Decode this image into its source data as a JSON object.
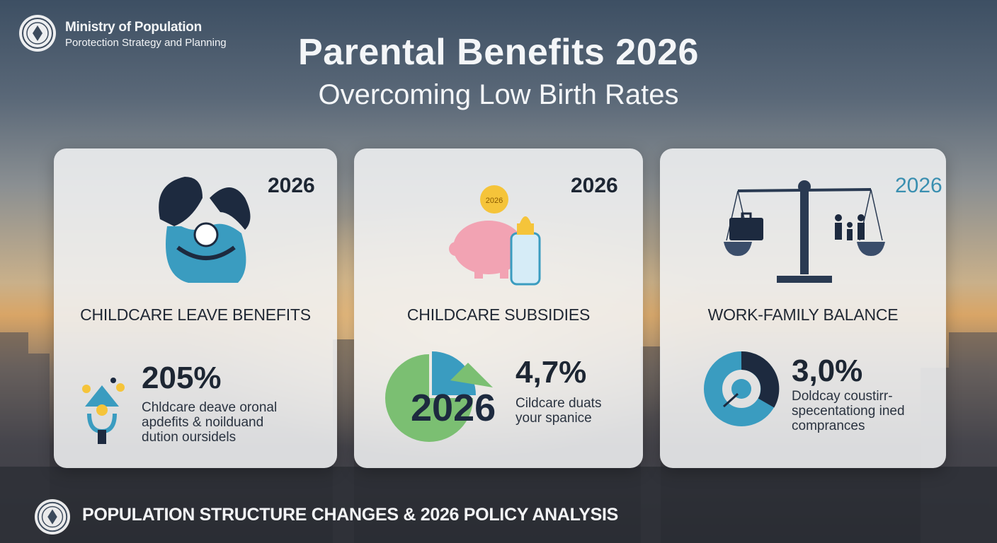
{
  "header": {
    "ministry_name": "Ministry of Population",
    "ministry_sub": "Porotection Strategy and Planning",
    "title": "Parental Benefits 2026",
    "subtitle": "Overcoming Low Birth Rates"
  },
  "cards": [
    {
      "year": "2026",
      "heading": "CHILDCARE LEAVE BENEFITS",
      "stat": "205%",
      "description": "Chldcare deave oronal\napdefits & noilduand\ndution oursidels",
      "illustration_icon": "parents-baby-icon",
      "stat_icon": "lightbulb-idea-icon"
    },
    {
      "year": "2026",
      "heading": "CHILDCARE SUBSIDIES",
      "stat": "4,7%",
      "chart_year": "2026",
      "coin_label": "2026",
      "description": "Cildcare duats\nyour spanice",
      "illustration_icon": "piggy-bank-bottle-icon",
      "stat_icon": "pie-chart-icon"
    },
    {
      "year": "2026",
      "heading": "WORK-FAMILY BALANCE",
      "stat": "3,0%",
      "description": "Doldcay coustirr-\nspecentationg ined\ncomprances",
      "illustration_icon": "balance-scale-icon",
      "stat_icon": "donut-chart-icon"
    }
  ],
  "footer": {
    "text": "POPULATION STRUCTURE CHANGES & 2026 POLICY ANALYSIS"
  },
  "colors": {
    "teal": "#3a9cc0",
    "navy": "#1d2a3f",
    "green": "#7bbf72",
    "pink": "#f2a3b3",
    "gold": "#f5c43a"
  }
}
